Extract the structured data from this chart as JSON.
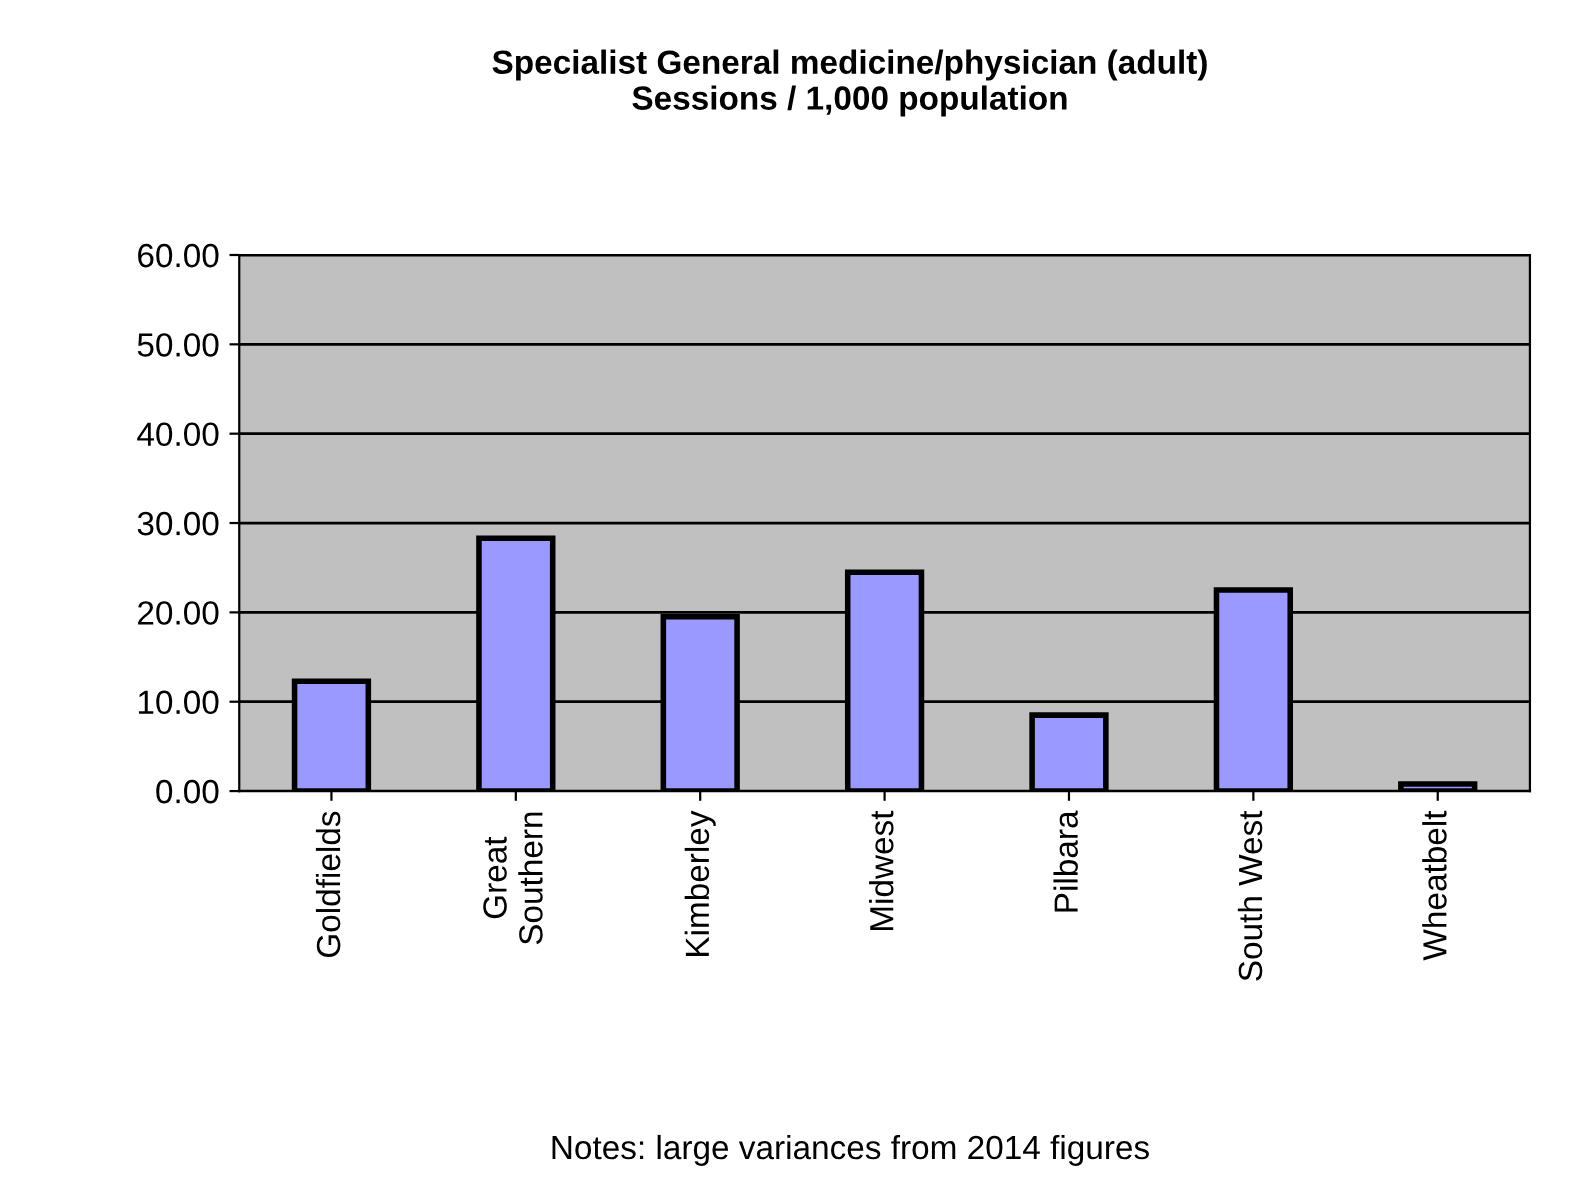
{
  "chart_data": {
    "type": "bar",
    "title": "Specialist General medicine/physician (adult)\nSessions / 1,000 population",
    "categories": [
      "Goldfields",
      "Great\nSouthern",
      "Kimberley",
      "Midwest",
      "Pilbara",
      "South West",
      "Wheatbelt"
    ],
    "values": [
      12.3,
      28.3,
      19.5,
      24.5,
      8.5,
      22.5,
      0.8
    ],
    "color": "#9999ff",
    "ylim": [
      0,
      60
    ],
    "yticks": [
      {
        "value": 0,
        "label": "0.00"
      },
      {
        "value": 10,
        "label": "10.00"
      },
      {
        "value": 20,
        "label": "20.00"
      },
      {
        "value": 30,
        "label": "30.00"
      },
      {
        "value": 40,
        "label": "40.00"
      },
      {
        "value": 50,
        "label": "50.00"
      },
      {
        "value": 60,
        "label": "60.00"
      }
    ],
    "grid": "y",
    "legend": false,
    "annotations": [
      "Notes: large variances from 2014 figures"
    ]
  }
}
